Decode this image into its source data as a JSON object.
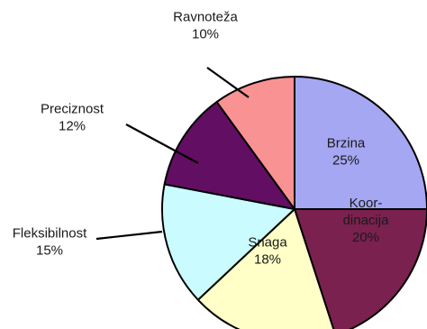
{
  "chart_data": {
    "type": "pie",
    "start_angle_deg": -90,
    "direction": "clockwise",
    "legend": "none",
    "slices": [
      {
        "label": "Brzina",
        "value": 25,
        "value_label": "25%",
        "color": "#A6A7F2",
        "label_inside": true,
        "label_text_color": "#1f1f3a"
      },
      {
        "label": "Koor-dinacija",
        "label_lines": [
          "Koor-",
          "dinacija"
        ],
        "value": 20,
        "value_label": "20%",
        "color": "#7A214F",
        "label_inside": true,
        "label_text_color": "#f0e6ee"
      },
      {
        "label": "Snaga",
        "value": 18,
        "value_label": "18%",
        "color": "#FFFFC7",
        "label_inside": true,
        "label_text_color": "#1f1f1f"
      },
      {
        "label": "Fleksibilnost",
        "value": 15,
        "value_label": "15%",
        "color": "#C9FBFF",
        "label_inside": false,
        "label_text_color": "#1a1a1a"
      },
      {
        "label": "Preciznost",
        "value": 12,
        "value_label": "12%",
        "color": "#620E63",
        "label_inside": false,
        "label_text_color": "#1a1a1a"
      },
      {
        "label": "Ravnoteža",
        "value": 10,
        "value_label": "10%",
        "color": "#F99292",
        "label_inside": false,
        "label_text_color": "#1a1a1a"
      }
    ]
  }
}
